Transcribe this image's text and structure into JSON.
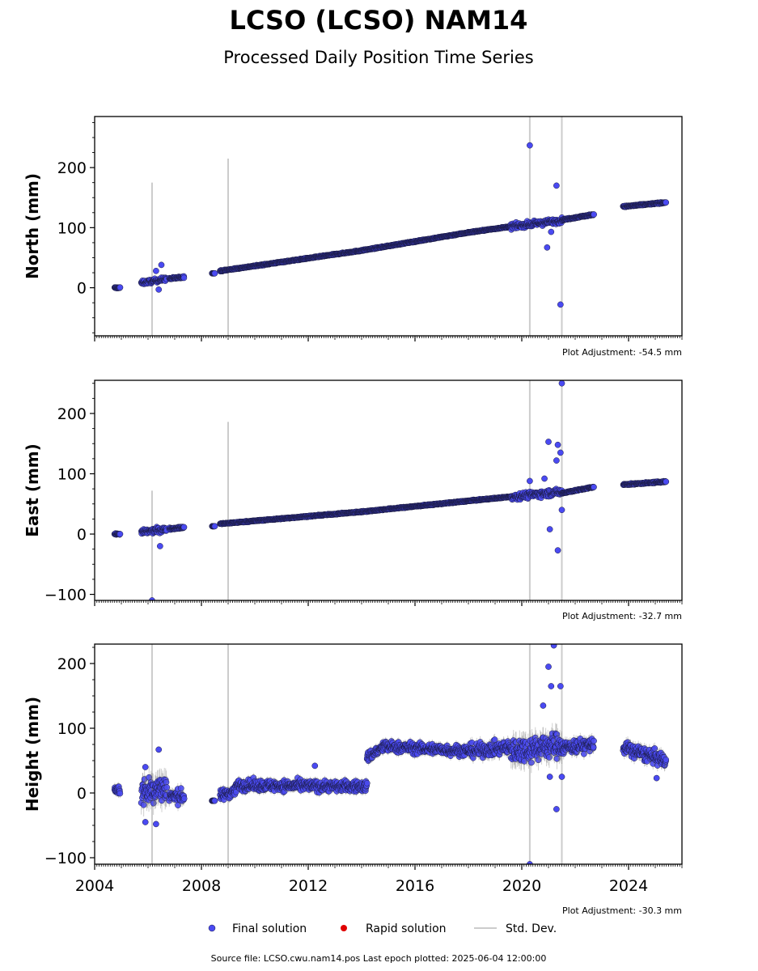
{
  "chart_data": {
    "type": "scatter",
    "title": "LCSO (LCSO) NAM14",
    "subtitle": "Processed Daily Position Time Series",
    "x_range": [
      2004.0,
      2026.0
    ],
    "x_ticks": [
      "2004",
      "2008",
      "2012",
      "2016",
      "2020",
      "2024"
    ],
    "x_tick_values": [
      2004,
      2008,
      2012,
      2016,
      2020,
      2024
    ],
    "colors": {
      "final": "#4a4af2",
      "rapid": "#e00000",
      "stddev": "#cccccc",
      "outline": "#1a1a40"
    },
    "legend": {
      "placement": "bottom-center",
      "final": "Final solution",
      "rapid": "Rapid solution",
      "stddev": "Std. Dev."
    },
    "footer": "Source file: LCSO.cwu.nam14.pos  Last epoch plotted: 2025-06-04 12:00:00",
    "panels": [
      {
        "ylabel": "North (mm)",
        "ylim": [
          -80,
          285
        ],
        "yticks": [
          0,
          100,
          200
        ],
        "ytick_labels": [
          "0",
          "100",
          "200"
        ],
        "adjustment": "Plot Adjustment: -54.5 mm",
        "segments": [
          [
            2004.75,
            2004.95,
            0,
            0,
            0.8
          ],
          [
            2005.75,
            2006.7,
            8,
            15,
            3
          ],
          [
            2006.8,
            2007.35,
            15,
            18,
            1.5
          ],
          [
            2008.4,
            2008.5,
            24,
            24,
            0
          ],
          [
            2008.7,
            2014.0,
            28,
            62,
            0.8
          ],
          [
            2014.0,
            2018.0,
            62,
            92,
            0.8
          ],
          [
            2018.0,
            2019.6,
            92,
            102,
            0.8
          ],
          [
            2019.6,
            2021.5,
            102,
            112,
            4
          ],
          [
            2021.5,
            2022.7,
            113,
            122,
            1
          ]
        ],
        "segments2": [
          [
            2023.8,
            2025.4,
            135,
            142,
            1
          ]
        ],
        "outliers": [
          [
            2020.3,
            237
          ],
          [
            2021.3,
            170
          ],
          [
            2021.45,
            -28
          ],
          [
            2020.95,
            67
          ],
          [
            2021.1,
            93
          ],
          [
            2006.5,
            38
          ],
          [
            2006.3,
            28
          ],
          [
            2006.4,
            -3
          ]
        ],
        "errorbars": [
          [
            2006.15,
            -80,
            175
          ],
          [
            2009.0,
            -80,
            215
          ],
          [
            2020.3,
            -80,
            285
          ],
          [
            2021.5,
            -80,
            285
          ]
        ]
      },
      {
        "ylabel": "East (mm)",
        "ylim": [
          -110,
          255
        ],
        "yticks": [
          -100,
          0,
          100,
          200
        ],
        "ytick_labels": [
          "−100",
          "0",
          "100",
          "200"
        ],
        "adjustment": "Plot Adjustment: -32.7 mm",
        "segments": [
          [
            2004.75,
            2004.95,
            0,
            0,
            0.8
          ],
          [
            2005.75,
            2006.7,
            3,
            8,
            4
          ],
          [
            2006.8,
            2007.35,
            9,
            11,
            1.5
          ],
          [
            2008.4,
            2008.5,
            13,
            13,
            0
          ],
          [
            2008.7,
            2014.0,
            17,
            37,
            0.8
          ],
          [
            2014.0,
            2018.0,
            37,
            55,
            0.8
          ],
          [
            2018.0,
            2019.6,
            55,
            62,
            0.8
          ],
          [
            2019.6,
            2021.5,
            62,
            70,
            5
          ],
          [
            2021.5,
            2022.7,
            68,
            78,
            1
          ]
        ],
        "segments2": [
          [
            2023.8,
            2025.4,
            82,
            87,
            1
          ]
        ],
        "outliers": [
          [
            2021.5,
            250
          ],
          [
            2021.0,
            153
          ],
          [
            2021.35,
            148
          ],
          [
            2021.45,
            135
          ],
          [
            2021.3,
            122
          ],
          [
            2021.05,
            8
          ],
          [
            2021.35,
            -27
          ],
          [
            2021.5,
            40
          ],
          [
            2006.15,
            -110
          ],
          [
            2006.45,
            -20
          ],
          [
            2020.3,
            88
          ],
          [
            2020.85,
            92
          ]
        ],
        "errorbars": [
          [
            2006.15,
            -110,
            72
          ],
          [
            2009.0,
            -110,
            186
          ],
          [
            2020.3,
            -110,
            255
          ],
          [
            2021.5,
            -110,
            255
          ]
        ]
      },
      {
        "ylabel": "Height (mm)",
        "ylim": [
          -110,
          230
        ],
        "yticks": [
          -100,
          0,
          100,
          200
        ],
        "ytick_labels": [
          "−100",
          "0",
          "100",
          "200"
        ],
        "adjustment": "Plot Adjustment: -30.3 mm",
        "segments": [
          [
            2004.75,
            2004.95,
            5,
            5,
            8
          ],
          [
            2005.75,
            2006.7,
            0,
            10,
            20
          ],
          [
            2006.8,
            2007.35,
            -5,
            -5,
            10
          ],
          [
            2008.4,
            2008.5,
            -12,
            -12,
            0
          ],
          [
            2008.7,
            2009.3,
            -5,
            5,
            8
          ],
          [
            2009.3,
            2014.2,
            12,
            10,
            8
          ],
          [
            2014.2,
            2014.8,
            55,
            70,
            8
          ],
          [
            2014.8,
            2018.0,
            72,
            65,
            8
          ],
          [
            2018.0,
            2019.6,
            65,
            70,
            10
          ],
          [
            2019.6,
            2021.5,
            65,
            75,
            18
          ],
          [
            2021.5,
            2022.7,
            70,
            75,
            10
          ]
        ],
        "segments2": [
          [
            2023.8,
            2025.4,
            70,
            50,
            10
          ]
        ],
        "outliers": [
          [
            2020.3,
            -110
          ],
          [
            2021.0,
            195
          ],
          [
            2021.1,
            165
          ],
          [
            2021.45,
            165
          ],
          [
            2021.2,
            228
          ],
          [
            2021.3,
            -25
          ],
          [
            2006.4,
            67
          ],
          [
            2006.3,
            -48
          ],
          [
            2005.9,
            -45
          ],
          [
            2005.9,
            40
          ],
          [
            2012.25,
            42
          ],
          [
            2020.8,
            135
          ],
          [
            2021.05,
            25
          ],
          [
            2021.5,
            25
          ],
          [
            2025.05,
            23
          ]
        ],
        "errorbars": [
          [
            2006.15,
            -110,
            230
          ],
          [
            2009.0,
            -110,
            230
          ],
          [
            2020.3,
            -110,
            230
          ],
          [
            2021.5,
            -110,
            230
          ]
        ]
      }
    ]
  }
}
